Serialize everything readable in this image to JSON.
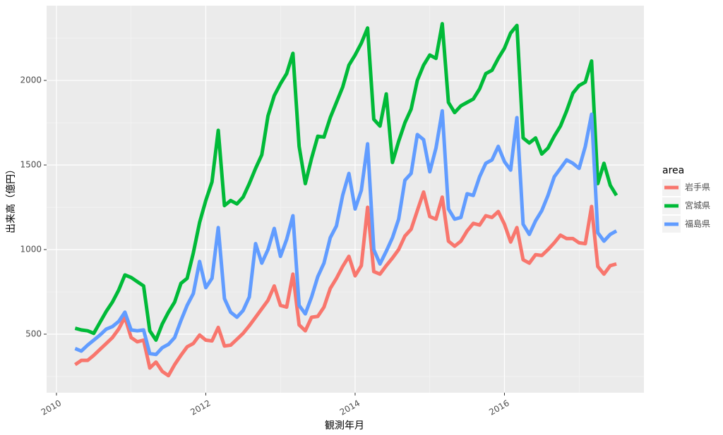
{
  "chart_data": {
    "type": "line",
    "x_label": "観測年月",
    "y_label": "出来高（億円）",
    "legend_title": "area",
    "x": [
      2010.25,
      2010.333,
      2010.417,
      2010.5,
      2010.583,
      2010.667,
      2010.75,
      2010.833,
      2010.917,
      2011,
      2011.083,
      2011.167,
      2011.25,
      2011.333,
      2011.417,
      2011.5,
      2011.583,
      2011.667,
      2011.75,
      2011.833,
      2011.917,
      2012,
      2012.083,
      2012.167,
      2012.25,
      2012.333,
      2012.417,
      2012.5,
      2012.583,
      2012.667,
      2012.75,
      2012.833,
      2012.917,
      2013,
      2013.083,
      2013.167,
      2013.25,
      2013.333,
      2013.417,
      2013.5,
      2013.583,
      2013.667,
      2013.75,
      2013.833,
      2013.917,
      2014,
      2014.083,
      2014.167,
      2014.25,
      2014.333,
      2014.417,
      2014.5,
      2014.583,
      2014.667,
      2014.75,
      2014.833,
      2014.917,
      2015,
      2015.083,
      2015.167,
      2015.25,
      2015.333,
      2015.417,
      2015.5,
      2015.583,
      2015.667,
      2015.75,
      2015.833,
      2015.917,
      2016,
      2016.083,
      2016.167,
      2016.25,
      2016.333,
      2016.417,
      2016.5,
      2016.583,
      2016.667,
      2016.75,
      2016.833,
      2016.917,
      2017,
      2017.083,
      2017.167,
      2017.25,
      2017.333,
      2017.417,
      2017.5
    ],
    "series": [
      {
        "name": "岩手県",
        "color": "#F8766D",
        "values": [
          320,
          345,
          345,
          375,
          410,
          445,
          480,
          530,
          600,
          480,
          455,
          465,
          300,
          335,
          280,
          255,
          320,
          375,
          425,
          445,
          495,
          465,
          460,
          540,
          430,
          435,
          470,
          505,
          550,
          600,
          650,
          700,
          785,
          670,
          660,
          855,
          555,
          520,
          600,
          605,
          660,
          770,
          830,
          900,
          960,
          845,
          905,
          1250,
          870,
          855,
          905,
          950,
          1000,
          1080,
          1120,
          1230,
          1340,
          1195,
          1180,
          1310,
          1050,
          1020,
          1050,
          1110,
          1155,
          1145,
          1200,
          1190,
          1225,
          1150,
          1045,
          1130,
          940,
          920,
          970,
          965,
          1000,
          1040,
          1085,
          1065,
          1065,
          1040,
          1035,
          1255,
          900,
          855,
          905,
          915
        ]
      },
      {
        "name": "宮城県",
        "color": "#00BA38",
        "values": [
          535,
          525,
          520,
          505,
          570,
          635,
          690,
          760,
          850,
          835,
          810,
          785,
          520,
          465,
          560,
          630,
          690,
          800,
          830,
          980,
          1160,
          1290,
          1400,
          1705,
          1260,
          1290,
          1270,
          1310,
          1390,
          1480,
          1560,
          1790,
          1910,
          1980,
          2040,
          2160,
          1610,
          1390,
          1540,
          1670,
          1665,
          1780,
          1870,
          1960,
          2090,
          2150,
          2220,
          2310,
          1770,
          1730,
          1920,
          1515,
          1640,
          1750,
          1830,
          2000,
          2090,
          2150,
          2130,
          2335,
          1870,
          1810,
          1850,
          1870,
          1890,
          1950,
          2040,
          2060,
          2130,
          2190,
          2280,
          2325,
          1660,
          1630,
          1660,
          1565,
          1600,
          1670,
          1730,
          1820,
          1925,
          1970,
          1990,
          2115,
          1390,
          1510,
          1380,
          1320
        ]
      },
      {
        "name": "福島県",
        "color": "#619CFF",
        "values": [
          415,
          400,
          435,
          465,
          495,
          530,
          545,
          575,
          630,
          525,
          520,
          525,
          385,
          380,
          420,
          440,
          480,
          580,
          670,
          740,
          930,
          775,
          830,
          1130,
          710,
          630,
          600,
          640,
          720,
          1035,
          920,
          1000,
          1125,
          960,
          1060,
          1200,
          670,
          620,
          720,
          840,
          920,
          1070,
          1140,
          1320,
          1450,
          1240,
          1350,
          1625,
          1000,
          915,
          990,
          1070,
          1180,
          1410,
          1450,
          1680,
          1650,
          1460,
          1600,
          1820,
          1240,
          1180,
          1190,
          1330,
          1320,
          1430,
          1510,
          1530,
          1610,
          1520,
          1470,
          1780,
          1150,
          1090,
          1170,
          1230,
          1320,
          1430,
          1480,
          1530,
          1510,
          1480,
          1610,
          1800,
          1100,
          1050,
          1090,
          1110
        ]
      }
    ],
    "xlim": [
      2009.868,
      2017.868
    ],
    "xticks": [
      2010,
      2012,
      2014,
      2016
    ],
    "ylim": [
      154,
      2442
    ],
    "yticks": [
      500,
      1000,
      1500,
      2000
    ],
    "grid": true,
    "legend_position": "right"
  }
}
